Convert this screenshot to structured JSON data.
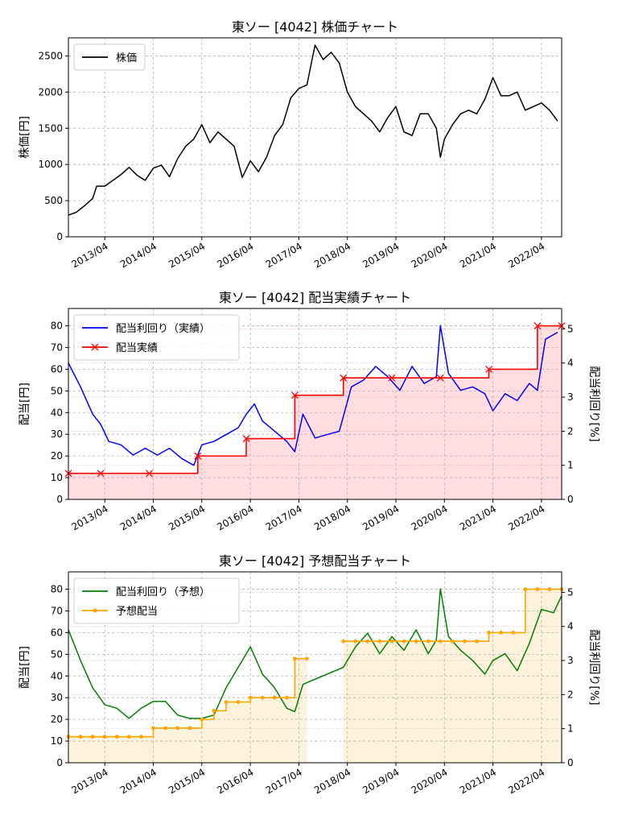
{
  "figure": {
    "background": "#ffffff"
  },
  "chart_data": [
    {
      "type": "line",
      "title": "東ソー [4042]  株価チャート",
      "ylabel": "株価[円]",
      "ylim": [
        0,
        2750
      ],
      "yticks": [
        0,
        500,
        1000,
        1500,
        2000,
        2500
      ],
      "xlim": [
        "2012-07-01",
        "2022-09-01"
      ],
      "xticks": [
        "2013/04",
        "2014/04",
        "2015/04",
        "2016/04",
        "2017/04",
        "2018/04",
        "2019/04",
        "2020/04",
        "2021/04",
        "2022/04"
      ],
      "grid": true,
      "legend_position": "top-left",
      "series": [
        {
          "name": "株価",
          "color": "#000000",
          "x": [
            "2012-07",
            "2012-09",
            "2012-11",
            "2013-01",
            "2013-02",
            "2013-04",
            "2013-06",
            "2013-08",
            "2013-10",
            "2013-12",
            "2014-02",
            "2014-04",
            "2014-06",
            "2014-08",
            "2014-10",
            "2014-12",
            "2015-02",
            "2015-04",
            "2015-06",
            "2015-08",
            "2015-10",
            "2015-12",
            "2016-02",
            "2016-04",
            "2016-06",
            "2016-08",
            "2016-10",
            "2016-12",
            "2017-02",
            "2017-04",
            "2017-06",
            "2017-08",
            "2017-10",
            "2017-12",
            "2018-02",
            "2018-04",
            "2018-06",
            "2018-08",
            "2018-10",
            "2018-12",
            "2019-02",
            "2019-04",
            "2019-06",
            "2019-08",
            "2019-10",
            "2019-12",
            "2020-02",
            "2020-03",
            "2020-04",
            "2020-06",
            "2020-08",
            "2020-10",
            "2020-12",
            "2021-02",
            "2021-04",
            "2021-06",
            "2021-08",
            "2021-10",
            "2021-12",
            "2022-02",
            "2022-04",
            "2022-06",
            "2022-08"
          ],
          "y": [
            300,
            340,
            430,
            530,
            700,
            700,
            780,
            860,
            960,
            850,
            780,
            950,
            990,
            830,
            1080,
            1250,
            1350,
            1550,
            1300,
            1450,
            1350,
            1250,
            820,
            1050,
            900,
            1100,
            1400,
            1550,
            1920,
            2050,
            2100,
            2650,
            2450,
            2550,
            2400,
            2000,
            1800,
            1700,
            1600,
            1450,
            1650,
            1800,
            1450,
            1400,
            1700,
            1700,
            1500,
            1100,
            1350,
            1550,
            1700,
            1750,
            1700,
            1900,
            2200,
            1950,
            1950,
            2000,
            1750,
            1800,
            1850,
            1750,
            1600
          ]
        }
      ]
    },
    {
      "type": "line",
      "title": "東ソー [4042]  配当実績チャート",
      "ylabel": "配当[円]",
      "ylabel_right": "配当利回り[%]",
      "ylim": [
        0,
        88
      ],
      "ylim_right": [
        0,
        5.6
      ],
      "yticks": [
        0,
        10,
        20,
        30,
        40,
        50,
        60,
        70,
        80
      ],
      "yticks_right": [
        0,
        1,
        2,
        3,
        4,
        5
      ],
      "xlim": [
        "2012-07-01",
        "2022-09-01"
      ],
      "xticks": [
        "2013/04",
        "2014/04",
        "2015/04",
        "2016/04",
        "2017/04",
        "2018/04",
        "2019/04",
        "2020/04",
        "2021/04",
        "2022/04"
      ],
      "grid": true,
      "legend_position": "top-left",
      "series": [
        {
          "name": "配当利回り（実績）",
          "axis": "right",
          "color": "#0000ff",
          "x": [
            "2012-07",
            "2012-10",
            "2013-01",
            "2013-03",
            "2013-05",
            "2013-08",
            "2013-11",
            "2014-02",
            "2014-05",
            "2014-08",
            "2014-11",
            "2015-02",
            "2015-04",
            "2015-07",
            "2015-10",
            "2016-01",
            "2016-03",
            "2016-05",
            "2016-07",
            "2016-10",
            "2017-01",
            "2017-03",
            "2017-05",
            "2017-08",
            "2017-11",
            "2018-02",
            "2018-05",
            "2018-08",
            "2018-11",
            "2019-02",
            "2019-05",
            "2019-08",
            "2019-11",
            "2020-02",
            "2020-03",
            "2020-05",
            "2020-08",
            "2020-11",
            "2021-02",
            "2021-04",
            "2021-07",
            "2021-10",
            "2022-01",
            "2022-03",
            "2022-05",
            "2022-08"
          ],
          "y": [
            4.0,
            3.3,
            2.5,
            2.2,
            1.7,
            1.6,
            1.3,
            1.5,
            1.3,
            1.5,
            1.2,
            1.0,
            1.6,
            1.7,
            1.9,
            2.1,
            2.5,
            2.8,
            2.3,
            2.0,
            1.7,
            1.4,
            2.5,
            1.8,
            1.9,
            2.0,
            3.3,
            3.5,
            3.9,
            3.6,
            3.2,
            3.9,
            3.4,
            3.6,
            5.1,
            3.7,
            3.2,
            3.3,
            3.1,
            2.6,
            3.1,
            2.9,
            3.4,
            3.2,
            4.7,
            4.9
          ]
        },
        {
          "name": "配当実績",
          "axis": "left",
          "color": "#ff0000",
          "marker": "x",
          "step": true,
          "x": [
            "2012-07",
            "2013-03",
            "2014-03",
            "2015-03",
            "2016-03",
            "2017-03",
            "2018-03",
            "2019-03",
            "2020-03",
            "2021-03",
            "2022-03",
            "2022-09"
          ],
          "y": [
            12,
            12,
            12,
            20,
            28,
            48,
            56,
            56,
            56,
            60,
            80,
            80
          ]
        }
      ]
    },
    {
      "type": "line",
      "title": "東ソー [4042]  予想配当チャート",
      "ylabel": "配当[円]",
      "ylabel_right": "配当利回り[%]",
      "ylim": [
        0,
        88
      ],
      "ylim_right": [
        0,
        5.6
      ],
      "yticks": [
        0,
        10,
        20,
        30,
        40,
        50,
        60,
        70,
        80
      ],
      "yticks_right": [
        0,
        1,
        2,
        3,
        4,
        5
      ],
      "xlim": [
        "2012-07-01",
        "2022-09-01"
      ],
      "xticks": [
        "2013/04",
        "2014/04",
        "2015/04",
        "2016/04",
        "2017/04",
        "2018/04",
        "2019/04",
        "2020/04",
        "2021/04",
        "2022/04"
      ],
      "grid": true,
      "legend_position": "top-left",
      "series": [
        {
          "name": "配当利回り（予想）",
          "axis": "right",
          "color": "#008000",
          "x": [
            "2012-07",
            "2012-10",
            "2013-01",
            "2013-04",
            "2013-07",
            "2013-10",
            "2014-01",
            "2014-04",
            "2014-07",
            "2014-10",
            "2015-01",
            "2015-04",
            "2015-07",
            "2015-10",
            "2016-01",
            "2016-04",
            "2016-07",
            "2016-10",
            "2017-01",
            "2017-03",
            "2017-05",
            "2018-03",
            "2018-06",
            "2018-09",
            "2018-12",
            "2019-03",
            "2019-06",
            "2019-09",
            "2019-12",
            "2020-02",
            "2020-03",
            "2020-05",
            "2020-08",
            "2020-11",
            "2021-02",
            "2021-04",
            "2021-07",
            "2021-10",
            "2022-01",
            "2022-04",
            "2022-07",
            "2022-09"
          ],
          "y": [
            3.9,
            3.0,
            2.2,
            1.7,
            1.6,
            1.3,
            1.6,
            1.8,
            1.8,
            1.4,
            1.3,
            1.3,
            1.4,
            2.2,
            2.8,
            3.4,
            2.6,
            2.2,
            1.6,
            1.5,
            2.3,
            2.8,
            3.4,
            3.8,
            3.2,
            3.7,
            3.3,
            3.9,
            3.2,
            3.6,
            5.1,
            3.7,
            3.3,
            3.0,
            2.6,
            3.0,
            3.2,
            2.7,
            3.5,
            4.5,
            4.4,
            4.9
          ]
        },
        {
          "name": "予想配当",
          "axis": "left",
          "color": "#ffa500",
          "marker": "dot",
          "step": true,
          "segments": [
            {
              "x": [
                "2012-07",
                "2012-10",
                "2013-01",
                "2013-04",
                "2013-07",
                "2013-10",
                "2014-01",
                "2014-04",
                "2014-07",
                "2014-10",
                "2015-01",
                "2015-04",
                "2015-07",
                "2015-10",
                "2016-01",
                "2016-04",
                "2016-07",
                "2016-10",
                "2017-01",
                "2017-03",
                "2017-06"
              ],
              "y": [
                12,
                12,
                12,
                12,
                12,
                12,
                12,
                16,
                16,
                16,
                16,
                20,
                24,
                28,
                28,
                30,
                30,
                30,
                30,
                48,
                48
              ]
            },
            {
              "x": [
                "2018-03",
                "2018-06",
                "2018-09",
                "2018-12",
                "2019-03",
                "2019-06",
                "2019-09",
                "2019-12",
                "2020-03",
                "2020-06",
                "2020-09",
                "2020-12",
                "2021-03",
                "2021-06",
                "2021-09",
                "2021-12",
                "2022-03",
                "2022-06",
                "2022-09"
              ],
              "y": [
                56,
                56,
                56,
                56,
                56,
                56,
                56,
                56,
                56,
                56,
                56,
                56,
                60,
                60,
                60,
                80,
                80,
                80,
                80
              ]
            }
          ]
        }
      ]
    }
  ]
}
